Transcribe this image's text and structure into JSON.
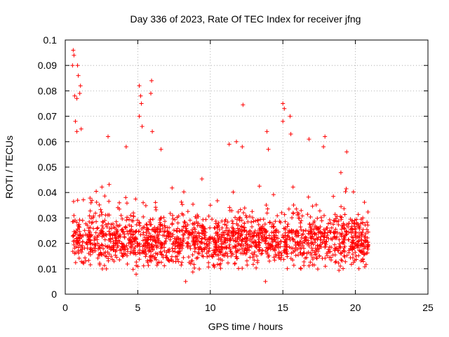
{
  "chart_data": {
    "type": "scatter",
    "title": "Day 336 of 2023, Rate Of TEC Index for receiver jfng",
    "xlabel": "GPS time / hours",
    "ylabel": "ROTI / TECUs",
    "xlim": [
      0,
      25
    ],
    "ylim": [
      0,
      0.1
    ],
    "x_ticks": [
      0,
      5,
      10,
      15,
      20,
      25
    ],
    "x_tick_labels": [
      "0",
      "5",
      "10",
      "15",
      "20",
      "25"
    ],
    "y_ticks": [
      0,
      0.01,
      0.02,
      0.03,
      0.04,
      0.05,
      0.06,
      0.07,
      0.08,
      0.09,
      0.1
    ],
    "y_tick_labels": [
      "0",
      "0.01",
      "0.02",
      "0.03",
      "0.04",
      "0.05",
      "0.06",
      "0.07",
      "0.08",
      "0.09",
      "0.1"
    ],
    "grid": true,
    "marker": "plus",
    "color": "#ff0000",
    "data_x_range": [
      0.5,
      20.9
    ],
    "bulk_y_range": [
      0.007,
      0.035
    ],
    "notable_points": [
      {
        "x": 0.55,
        "y": 0.096
      },
      {
        "x": 0.6,
        "y": 0.094
      },
      {
        "x": 0.5,
        "y": 0.09
      },
      {
        "x": 0.85,
        "y": 0.09
      },
      {
        "x": 0.9,
        "y": 0.086
      },
      {
        "x": 1.05,
        "y": 0.082
      },
      {
        "x": 1.0,
        "y": 0.079
      },
      {
        "x": 0.65,
        "y": 0.078
      },
      {
        "x": 0.8,
        "y": 0.077
      },
      {
        "x": 0.7,
        "y": 0.068
      },
      {
        "x": 0.8,
        "y": 0.064
      },
      {
        "x": 1.1,
        "y": 0.065
      },
      {
        "x": 2.95,
        "y": 0.062
      },
      {
        "x": 4.2,
        "y": 0.058
      },
      {
        "x": 5.1,
        "y": 0.082
      },
      {
        "x": 5.2,
        "y": 0.078
      },
      {
        "x": 5.25,
        "y": 0.075
      },
      {
        "x": 5.95,
        "y": 0.084
      },
      {
        "x": 5.9,
        "y": 0.079
      },
      {
        "x": 5.1,
        "y": 0.07
      },
      {
        "x": 5.3,
        "y": 0.066
      },
      {
        "x": 6.0,
        "y": 0.064
      },
      {
        "x": 6.6,
        "y": 0.057
      },
      {
        "x": 11.3,
        "y": 0.059
      },
      {
        "x": 11.8,
        "y": 0.06
      },
      {
        "x": 12.25,
        "y": 0.0745
      },
      {
        "x": 12.2,
        "y": 0.058
      },
      {
        "x": 13.9,
        "y": 0.064
      },
      {
        "x": 14.0,
        "y": 0.057
      },
      {
        "x": 15.0,
        "y": 0.075
      },
      {
        "x": 15.1,
        "y": 0.073
      },
      {
        "x": 15.5,
        "y": 0.07
      },
      {
        "x": 15.0,
        "y": 0.068
      },
      {
        "x": 15.55,
        "y": 0.063
      },
      {
        "x": 16.8,
        "y": 0.061
      },
      {
        "x": 17.9,
        "y": 0.062
      },
      {
        "x": 17.8,
        "y": 0.058
      },
      {
        "x": 19.4,
        "y": 0.056
      },
      {
        "x": 8.3,
        "y": 0.005
      },
      {
        "x": 13.8,
        "y": 0.005
      }
    ]
  }
}
